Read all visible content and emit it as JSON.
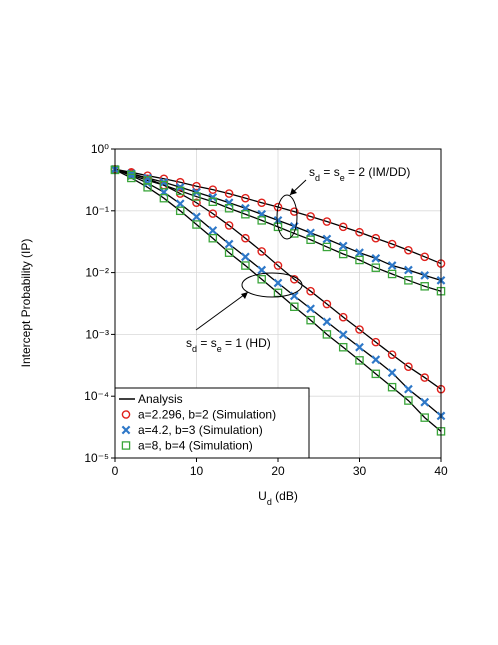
{
  "chart_data": {
    "type": "line",
    "y_label": "Intercept Probability (IP)",
    "x_label_parts": [
      "U",
      "d",
      " (dB)"
    ],
    "log_y": true,
    "grid": true,
    "x": [
      0,
      2,
      4,
      6,
      8,
      10,
      12,
      14,
      16,
      18,
      20,
      22,
      24,
      26,
      28,
      30,
      32,
      34,
      36,
      38,
      40
    ],
    "xlim": [
      0,
      40
    ],
    "xticks": [
      0,
      10,
      20,
      30,
      40
    ],
    "ylim": [
      1e-05,
      1
    ],
    "yticks": [
      {
        "value": 1,
        "label": "10⁰"
      },
      {
        "value": 0.1,
        "label": "10⁻¹"
      },
      {
        "value": 0.01,
        "label": "10⁻²"
      },
      {
        "value": 0.001,
        "label": "10⁻³"
      },
      {
        "value": 0.0001,
        "label": "10⁻⁴"
      },
      {
        "value": 1e-05,
        "label": "10⁻⁵"
      }
    ],
    "analysis": {
      "name": "Analysis",
      "color": "#000000"
    },
    "legend": "lower left",
    "series": [
      {
        "name": "a=2.296, b=2 (Simulation)",
        "color": "#e0201b",
        "marker": "circle",
        "curves": [
          {
            "values": [
              0.47,
              0.42,
              0.37,
              0.33,
              0.29,
              0.25,
              0.22,
              0.19,
              0.16,
              0.135,
              0.115,
              0.097,
              0.081,
              0.067,
              0.055,
              0.045,
              0.036,
              0.029,
              0.023,
              0.018,
              0.014
            ]
          },
          {
            "values": [
              0.47,
              0.4,
              0.33,
              0.26,
              0.19,
              0.135,
              0.09,
              0.058,
              0.036,
              0.022,
              0.013,
              0.0078,
              0.005,
              0.0031,
              0.0019,
              0.0012,
              0.00075,
              0.00047,
              0.0003,
              0.0002,
              0.00013
            ]
          }
        ]
      },
      {
        "name": "a=4.2, b=3 (Simulation)",
        "color": "#2e78c8",
        "marker": "x",
        "curves": [
          {
            "values": [
              0.47,
              0.4,
              0.34,
              0.29,
              0.24,
              0.2,
              0.165,
              0.135,
              0.11,
              0.088,
              0.07,
              0.056,
              0.044,
              0.035,
              0.027,
              0.021,
              0.017,
              0.013,
              0.011,
              0.009,
              0.0075
            ]
          },
          {
            "values": [
              0.47,
              0.37,
              0.28,
              0.2,
              0.13,
              0.08,
              0.048,
              0.029,
              0.018,
              0.011,
              0.0068,
              0.0042,
              0.0026,
              0.0016,
              0.00099,
              0.00062,
              0.00039,
              0.00024,
              0.00013,
              8e-05,
              4.8e-05
            ]
          }
        ]
      },
      {
        "name": "a=8, b=4 (Simulation)",
        "color": "#3aa53a",
        "marker": "square",
        "curves": [
          {
            "values": [
              0.46,
              0.38,
              0.31,
              0.26,
              0.21,
              0.17,
              0.14,
              0.11,
              0.088,
              0.07,
              0.055,
              0.043,
              0.034,
              0.026,
              0.02,
              0.016,
              0.012,
              0.0095,
              0.0075,
              0.006,
              0.005
            ]
          },
          {
            "values": [
              0.46,
              0.34,
              0.24,
              0.16,
              0.1,
              0.06,
              0.036,
              0.021,
              0.013,
              0.0078,
              0.0047,
              0.0028,
              0.0017,
              0.001,
              0.00062,
              0.00038,
              0.00023,
              0.00014,
              8.5e-05,
              4.5e-05,
              2.7e-05
            ]
          }
        ]
      }
    ],
    "annotations": [
      {
        "parts": [
          "s",
          "d",
          " = s",
          "e",
          " = 2 (IM/DD)"
        ]
      },
      {
        "parts": [
          "s",
          "d",
          " = s",
          "e",
          " = 1 (HD)"
        ]
      }
    ]
  }
}
